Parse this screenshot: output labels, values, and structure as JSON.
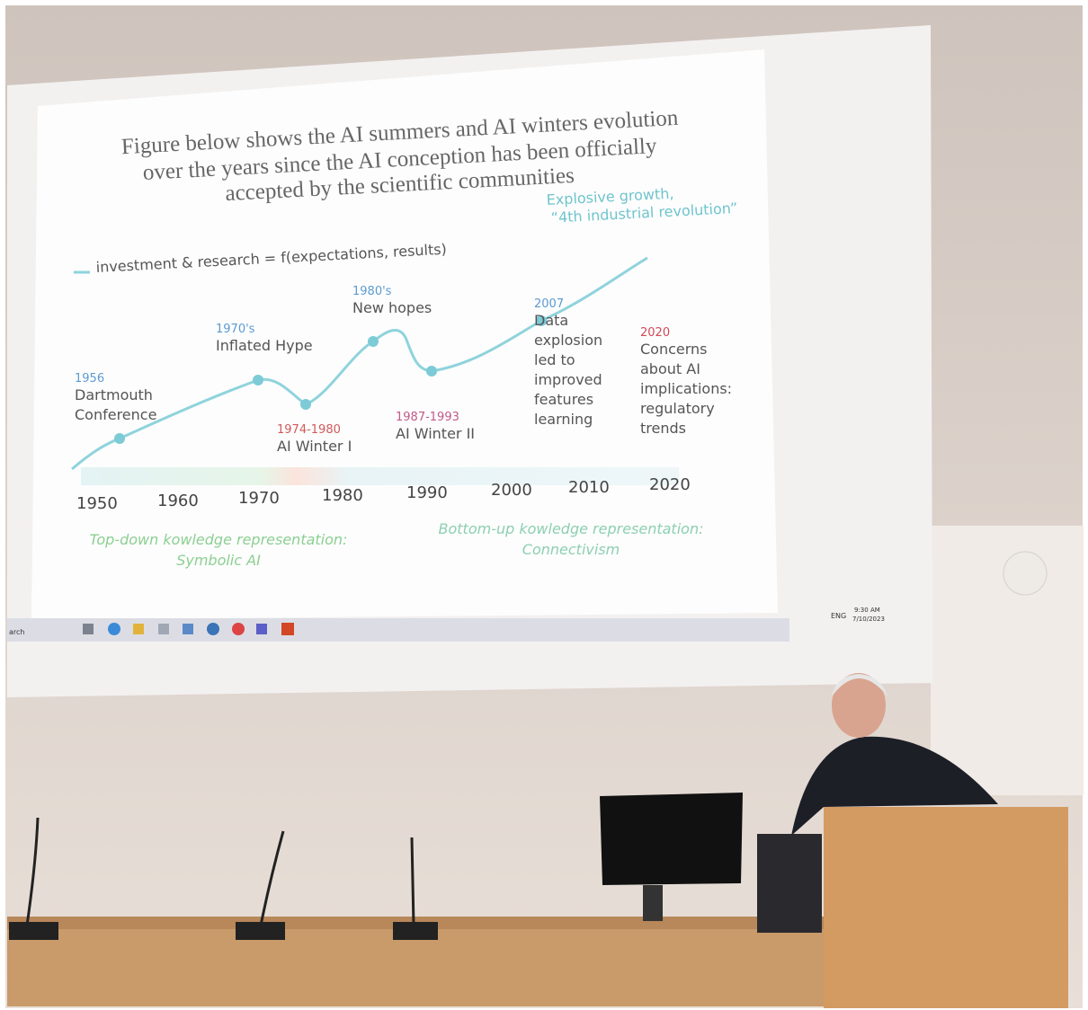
{
  "slide": {
    "title": [
      "Figure below shows the AI summers and AI winters evolution",
      "over the years since the AI conception has been officially",
      "accepted by the scientific communities"
    ],
    "top_note": [
      "Explosive growth,",
      "“4th industrial revolution”"
    ],
    "legend": "investment & research = f(expectations, results)",
    "annotations": [
      {
        "period": "1956",
        "lines": [
          "Dartmouth",
          "Conference"
        ]
      },
      {
        "period": "1970's",
        "lines": [
          "Inflated Hype"
        ]
      },
      {
        "period": "1974-1980",
        "lines": [
          "AI Winter I"
        ]
      },
      {
        "period": "1980's",
        "lines": [
          "New hopes"
        ]
      },
      {
        "period": "1987-1993",
        "lines": [
          "AI Winter II"
        ]
      },
      {
        "period": "2007",
        "lines": [
          "Data",
          "explosion",
          "led to",
          "improved",
          "features",
          "learning"
        ]
      },
      {
        "period": "2020",
        "lines": [
          "Concerns",
          "about AI",
          "implications:",
          "regulatory",
          "trends"
        ]
      }
    ],
    "years": [
      "1950",
      "1960",
      "1970",
      "1980",
      "1990",
      "2000",
      "2010",
      "2020"
    ],
    "bottom_left": [
      "Top-down kowledge representation:",
      "Symbolic AI"
    ],
    "bottom_right": [
      "Bottom-up kowledge representation:",
      "Connectivism"
    ]
  },
  "taskbar": {
    "search": "arch",
    "language": "ENG",
    "time": "9:30 AM",
    "date": "7/10/2023"
  }
}
